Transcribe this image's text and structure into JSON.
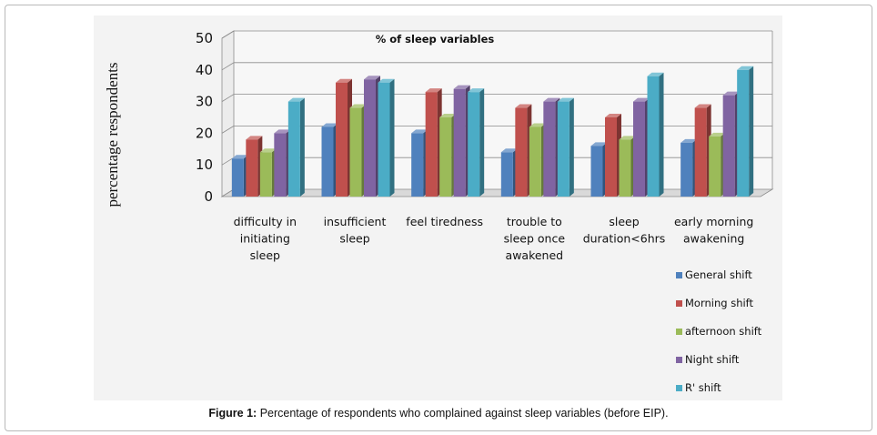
{
  "caption": {
    "label": "Figure 1:",
    "text": " Percentage of respondents who complained against sleep variables (before EIP)."
  },
  "chart_data": {
    "type": "bar",
    "title": "% of sleep variables",
    "ylabel": "percentage respondents",
    "xlabel": "",
    "ylim": [
      0,
      50
    ],
    "yticks": [
      0,
      10,
      20,
      30,
      40,
      50
    ],
    "grid": true,
    "legend_position": "bottom-right",
    "categories": [
      [
        "difficulty in",
        "initiating",
        "sleep"
      ],
      [
        "insufficient",
        "sleep"
      ],
      [
        "feel tiredness"
      ],
      [
        "trouble to",
        "sleep once",
        "awakened"
      ],
      [
        "sleep",
        "duration<6hrs"
      ],
      [
        "early morning",
        "awakening"
      ]
    ],
    "series": [
      {
        "name": "General shift",
        "color": "#4f81bd",
        "values": [
          12,
          22,
          20,
          14,
          16,
          17
        ]
      },
      {
        "name": "Morning shift",
        "color": "#c0504d",
        "values": [
          18,
          36,
          33,
          28,
          25,
          28
        ]
      },
      {
        "name": "afternoon shift",
        "color": "#9bbb59",
        "values": [
          14,
          28,
          25,
          22,
          18,
          19
        ]
      },
      {
        "name": "Night shift",
        "color": "#8064a2",
        "values": [
          20,
          37,
          34,
          30,
          30,
          32
        ]
      },
      {
        "name": "R' shift",
        "color": "#4bacc6",
        "values": [
          30,
          36,
          33,
          30,
          38,
          40
        ]
      }
    ]
  }
}
